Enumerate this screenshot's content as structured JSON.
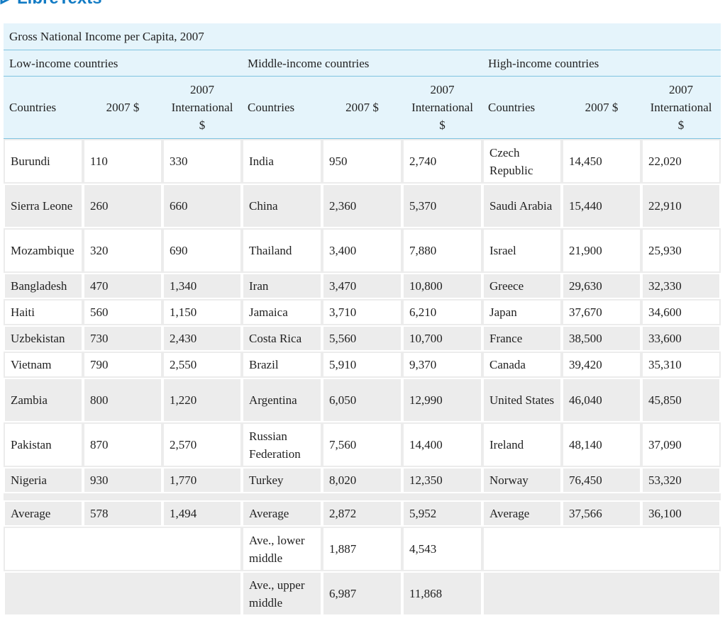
{
  "logo_text": "LibreTexts",
  "table": {
    "caption": "Gross National Income per Capita, 2007",
    "groups": [
      "Low-income countries",
      "Middle-income countries",
      "High-income countries"
    ],
    "col_headers": {
      "country": "Countries",
      "usd": "2007 $",
      "intl_line1": "2007",
      "intl_line2": "International",
      "intl_line3": "$"
    },
    "rows": [
      [
        "Burundi",
        "110",
        "330",
        "India",
        "950",
        "2,740",
        "Czech Republic",
        "14,450",
        "22,020"
      ],
      [
        "Sierra Leone",
        "260",
        "660",
        "China",
        "2,360",
        "5,370",
        "Saudi Arabia",
        "15,440",
        "22,910"
      ],
      [
        "Mozambique",
        "320",
        "690",
        "Thailand",
        "3,400",
        "7,880",
        "Israel",
        "21,900",
        "25,930"
      ],
      [
        "Bangladesh",
        "470",
        "1,340",
        "Iran",
        "3,470",
        "10,800",
        "Greece",
        "29,630",
        "32,330"
      ],
      [
        "Haiti",
        "560",
        "1,150",
        "Jamaica",
        "3,710",
        "6,210",
        "Japan",
        "37,670",
        "34,600"
      ],
      [
        "Uzbekistan",
        "730",
        "2,430",
        "Costa Rica",
        "5,560",
        "10,700",
        "France",
        "38,500",
        "33,600"
      ],
      [
        "Vietnam",
        "790",
        "2,550",
        "Brazil",
        "5,910",
        "9,370",
        "Canada",
        "39,420",
        "35,310"
      ],
      [
        "Zambia",
        "800",
        "1,220",
        "Argentina",
        "6,050",
        "12,990",
        "United States",
        "46,040",
        "45,850"
      ],
      [
        "Pakistan",
        "870",
        "2,570",
        "Russian Federation",
        "7,560",
        "14,400",
        "Ireland",
        "48,140",
        "37,090"
      ],
      [
        "Nigeria",
        "930",
        "1,770",
        "Turkey",
        "8,020",
        "12,350",
        "Norway",
        "76,450",
        "53,320"
      ]
    ],
    "average": [
      "Average",
      "578",
      "1,494",
      "Average",
      "2,872",
      "5,952",
      "Average",
      "37,566",
      "36,100"
    ],
    "lower_middle": [
      "Ave., lower middle",
      "1,887",
      "4,543"
    ],
    "upper_middle": [
      "Ave., upper middle",
      "6,987",
      "11,868"
    ]
  }
}
